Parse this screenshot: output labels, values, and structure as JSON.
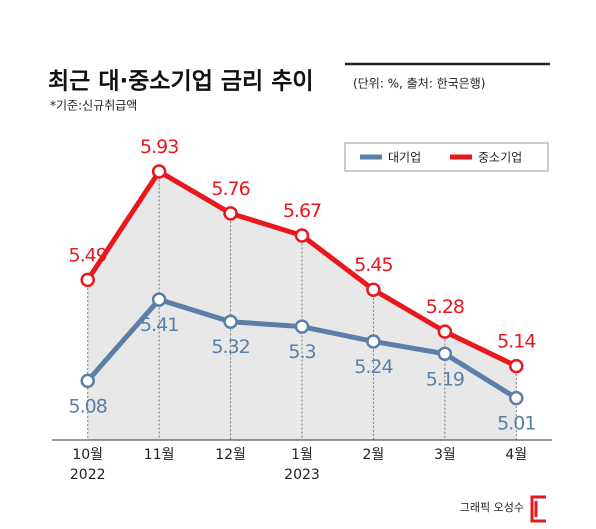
{
  "chart_data": {
    "type": "line",
    "title": "최근 대·중소기업 금리 추이",
    "subtitle": "(단위: %, 출처: 한국은행)",
    "note": "*기준:신규취급액",
    "credit": "그래픽 오성수",
    "categories": [
      "10월",
      "11월",
      "12월",
      "1월",
      "2월",
      "3월",
      "4월"
    ],
    "years": [
      "2022",
      null,
      null,
      "2023",
      null,
      null,
      null
    ],
    "series": [
      {
        "name": "대기업",
        "color": "#5b7fa6",
        "values": [
          5.08,
          5.41,
          5.32,
          5.3,
          5.24,
          5.19,
          5.01
        ]
      },
      {
        "name": "중소기업",
        "color": "#e8191e",
        "values": [
          5.49,
          5.93,
          5.76,
          5.67,
          5.45,
          5.28,
          5.14
        ]
      }
    ],
    "ylim": [
      4.84,
      6.22
    ],
    "fill": "#e8e8e8"
  }
}
